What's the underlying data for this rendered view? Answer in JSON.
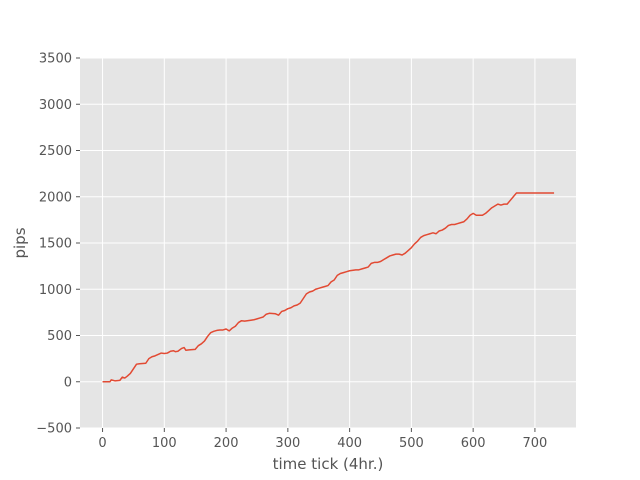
{
  "chart_data": {
    "type": "line",
    "title": "",
    "xlabel": "time tick (4hr.)",
    "ylabel": "pips",
    "xlim": [
      -36.5,
      766.5
    ],
    "ylim": [
      -500,
      3500
    ],
    "xticks": [
      0,
      100,
      200,
      300,
      400,
      500,
      600,
      700
    ],
    "yticks": [
      -500,
      0,
      500,
      1000,
      1500,
      2000,
      2500,
      3000,
      3500
    ],
    "grid": true,
    "legend": "none",
    "colors": {
      "background": "#E5E5E5",
      "grid": "#FFFFFF",
      "line": "#E24A33",
      "text": "#555555"
    },
    "series": [
      {
        "x": [
          0,
          5,
          12,
          14,
          20,
          28,
          32,
          36,
          40,
          45,
          50,
          55,
          60,
          70,
          75,
          80,
          85,
          90,
          95,
          100,
          105,
          110,
          115,
          118,
          122,
          128,
          132,
          135,
          140,
          150,
          155,
          160,
          165,
          170,
          175,
          180,
          185,
          190,
          195,
          200,
          205,
          210,
          215,
          220,
          225,
          230,
          240,
          245,
          250,
          255,
          260,
          265,
          270,
          280,
          285,
          290,
          295,
          300,
          305,
          310,
          315,
          320,
          325,
          330,
          335,
          340,
          345,
          350,
          355,
          360,
          365,
          370,
          375,
          380,
          385,
          390,
          395,
          400,
          410,
          415,
          420,
          425,
          430,
          435,
          440,
          445,
          450,
          455,
          460,
          465,
          470,
          475,
          480,
          485,
          490,
          495,
          500,
          505,
          510,
          515,
          520,
          525,
          530,
          535,
          540,
          545,
          550,
          555,
          560,
          565,
          570,
          575,
          580,
          585,
          590,
          595,
          600,
          605,
          610,
          615,
          620,
          625,
          630,
          635,
          640,
          645,
          650,
          655,
          660,
          665,
          670,
          675,
          700,
          731
        ],
        "y": [
          0,
          0,
          0,
          20,
          10,
          15,
          50,
          40,
          60,
          90,
          140,
          190,
          195,
          200,
          250,
          270,
          280,
          295,
          310,
          305,
          310,
          330,
          335,
          325,
          330,
          360,
          370,
          340,
          345,
          350,
          390,
          410,
          440,
          490,
          530,
          545,
          555,
          560,
          560,
          570,
          550,
          580,
          600,
          640,
          660,
          655,
          665,
          670,
          680,
          690,
          700,
          730,
          740,
          735,
          720,
          760,
          770,
          790,
          800,
          820,
          830,
          850,
          900,
          950,
          970,
          980,
          1000,
          1010,
          1020,
          1030,
          1040,
          1080,
          1100,
          1150,
          1170,
          1180,
          1190,
          1200,
          1210,
          1210,
          1220,
          1230,
          1240,
          1280,
          1290,
          1290,
          1300,
          1320,
          1340,
          1360,
          1370,
          1380,
          1380,
          1370,
          1390,
          1420,
          1450,
          1490,
          1520,
          1560,
          1580,
          1590,
          1600,
          1610,
          1600,
          1630,
          1640,
          1660,
          1690,
          1700,
          1700,
          1710,
          1720,
          1730,
          1760,
          1800,
          1820,
          1800,
          1800,
          1800,
          1820,
          1850,
          1880,
          1900,
          1920,
          1910,
          1920,
          1920,
          1960,
          2000,
          2040,
          2040,
          2040,
          2040
        ]
      }
    ]
  }
}
